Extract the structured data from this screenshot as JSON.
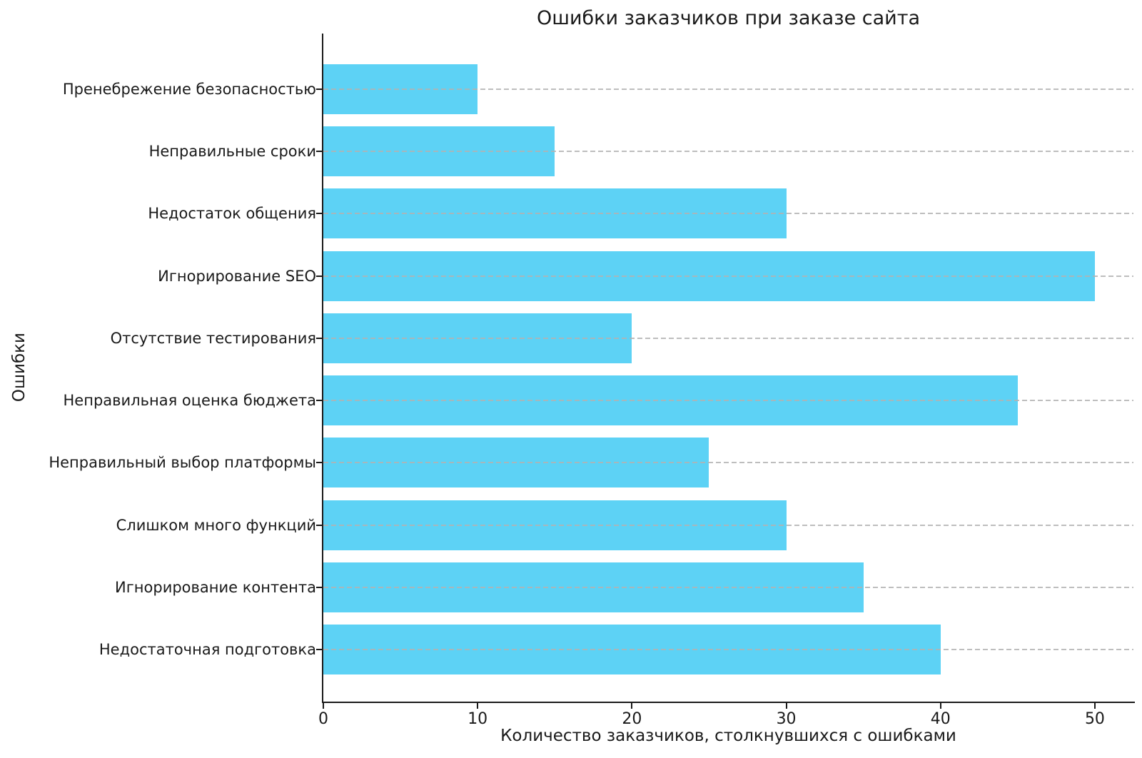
{
  "chart_data": {
    "type": "bar",
    "orientation": "horizontal",
    "title": "Ошибки заказчиков при заказе сайта",
    "xlabel": "Количество заказчиков, столкнувшихся с ошибками",
    "ylabel": "Ошибки",
    "categories": [
      "Пренебрежение безопасностью",
      "Неправильные сроки",
      "Недостаток общения",
      "Игнорирование SEO",
      "Отсутствие тестирования",
      "Неправильная оценка бюджета",
      "Неправильный выбор платформы",
      "Слишком много функций",
      "Игнорирование контента",
      "Недостаточная подготовка"
    ],
    "values": [
      10,
      15,
      30,
      50,
      20,
      45,
      25,
      30,
      35,
      40
    ],
    "x_ticks": [
      0,
      10,
      20,
      30,
      40,
      50
    ],
    "xlim": [
      0,
      52.5
    ],
    "grid": "horizontal-dashed",
    "legend": "none",
    "bar_color": "#5DD2F5",
    "grid_color": "#b2b2b2",
    "axis_color": "#1a1a1a",
    "background_color": "#ffffff"
  }
}
